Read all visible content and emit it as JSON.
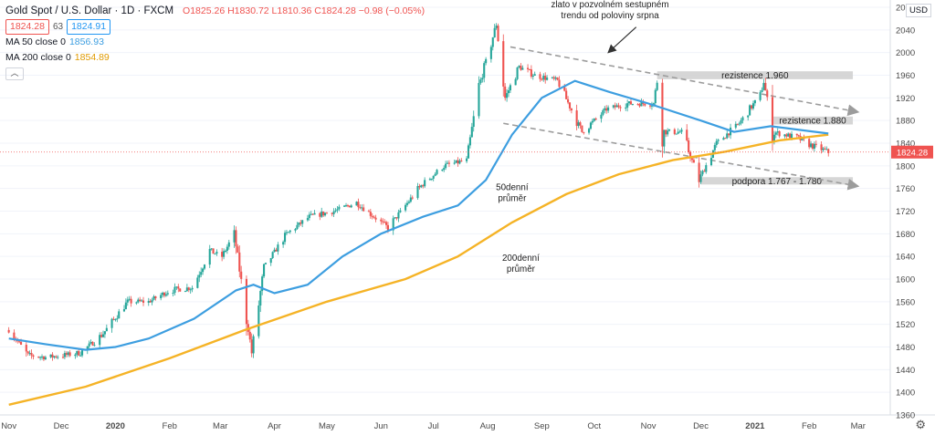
{
  "header": {
    "symbol": "Gold Spot / U.S. Dollar · 1D · FXCM",
    "ohlc": "O1825.26 H1830.72 L1810.36 C1824.28 −0.98 (−0.05%)",
    "bid": "1824.28",
    "spread": "63",
    "ask": "1824.91",
    "ma50_label": "MA 50 close 0",
    "ma50_value": "1856.93",
    "ma200_label": "MA 200 close 0",
    "ma200_value": "1854.89",
    "currency": "USD"
  },
  "colors": {
    "up": "#26a69a",
    "down": "#ef5350",
    "ma50": "#3d9ee0",
    "ma200": "#f5b326",
    "channel": "#9c9c9c",
    "zone": "#cfcfcf"
  },
  "chart_data": {
    "type": "candlestick",
    "ylim": [
      1360,
      2080
    ],
    "y_ticks": [
      1360,
      1400,
      1440,
      1480,
      1520,
      1560,
      1600,
      1640,
      1680,
      1720,
      1760,
      1800,
      1840,
      1880,
      1920,
      1960,
      2000,
      2040,
      2080
    ],
    "x_labels": [
      "Nov",
      "Dec",
      "2020",
      "Feb",
      "Mar",
      "Apr",
      "May",
      "Jun",
      "Jul",
      "Aug",
      "Sep",
      "Oct",
      "Nov",
      "Dec",
      "2021",
      "Feb",
      "Mar"
    ],
    "last_price": "1824.28",
    "price_path": [
      [
        "2019-11-01",
        1510
      ],
      [
        "2019-11-12",
        1465
      ],
      [
        "2019-11-22",
        1462
      ],
      [
        "2019-12-02",
        1465
      ],
      [
        "2019-12-12",
        1470
      ],
      [
        "2019-12-24",
        1500
      ],
      [
        "2020-01-08",
        1560
      ],
      [
        "2020-01-20",
        1560
      ],
      [
        "2020-02-01",
        1580
      ],
      [
        "2020-02-14",
        1585
      ],
      [
        "2020-02-24",
        1650
      ],
      [
        "2020-03-02",
        1640
      ],
      [
        "2020-03-09",
        1680
      ],
      [
        "2020-03-19",
        1470
      ],
      [
        "2020-03-26",
        1620
      ],
      [
        "2020-04-08",
        1680
      ],
      [
        "2020-04-21",
        1710
      ],
      [
        "2020-05-05",
        1720
      ],
      [
        "2020-05-18",
        1735
      ],
      [
        "2020-06-05",
        1690
      ],
      [
        "2020-06-15",
        1730
      ],
      [
        "2020-06-24",
        1765
      ],
      [
        "2020-07-07",
        1800
      ],
      [
        "2020-07-20",
        1810
      ],
      [
        "2020-07-27",
        1940
      ],
      [
        "2020-08-06",
        2050
      ],
      [
        "2020-08-11",
        1920
      ],
      [
        "2020-08-19",
        1975
      ],
      [
        "2020-08-28",
        1960
      ],
      [
        "2020-09-10",
        1950
      ],
      [
        "2020-09-24",
        1860
      ],
      [
        "2020-10-08",
        1900
      ],
      [
        "2020-10-20",
        1910
      ],
      [
        "2020-11-04",
        1910
      ],
      [
        "2020-11-06",
        1950
      ],
      [
        "2020-11-09",
        1860
      ],
      [
        "2020-11-20",
        1860
      ],
      [
        "2020-11-30",
        1775
      ],
      [
        "2020-12-10",
        1840
      ],
      [
        "2020-12-23",
        1875
      ],
      [
        "2021-01-04",
        1925
      ],
      [
        "2021-01-06",
        1950
      ],
      [
        "2021-01-11",
        1860
      ],
      [
        "2021-01-25",
        1850
      ],
      [
        "2021-02-03",
        1835
      ],
      [
        "2021-02-08",
        1830
      ],
      [
        "2021-02-12",
        1824
      ]
    ],
    "series": [
      {
        "name": "MA 50",
        "points": [
          [
            "2019-11-01",
            1495
          ],
          [
            "2019-11-22",
            1485
          ],
          [
            "2019-12-15",
            1475
          ],
          [
            "2020-01-01",
            1480
          ],
          [
            "2020-01-20",
            1495
          ],
          [
            "2020-02-15",
            1530
          ],
          [
            "2020-03-10",
            1580
          ],
          [
            "2020-03-20",
            1590
          ],
          [
            "2020-04-01",
            1575
          ],
          [
            "2020-04-20",
            1590
          ],
          [
            "2020-05-10",
            1640
          ],
          [
            "2020-06-01",
            1680
          ],
          [
            "2020-06-25",
            1710
          ],
          [
            "2020-07-15",
            1730
          ],
          [
            "2020-07-31",
            1775
          ],
          [
            "2020-08-15",
            1855
          ],
          [
            "2020-09-01",
            1920
          ],
          [
            "2020-09-20",
            1950
          ],
          [
            "2020-10-10",
            1930
          ],
          [
            "2020-11-01",
            1910
          ],
          [
            "2020-12-01",
            1880
          ],
          [
            "2020-12-20",
            1860
          ],
          [
            "2021-01-10",
            1870
          ],
          [
            "2021-02-12",
            1857
          ]
        ]
      },
      {
        "name": "MA 200",
        "points": [
          [
            "2019-11-01",
            1378
          ],
          [
            "2019-12-15",
            1410
          ],
          [
            "2020-02-01",
            1460
          ],
          [
            "2020-03-15",
            1510
          ],
          [
            "2020-05-01",
            1560
          ],
          [
            "2020-06-15",
            1600
          ],
          [
            "2020-07-15",
            1640
          ],
          [
            "2020-08-15",
            1700
          ],
          [
            "2020-09-15",
            1750
          ],
          [
            "2020-10-15",
            1785
          ],
          [
            "2020-11-15",
            1810
          ],
          [
            "2020-12-15",
            1825
          ],
          [
            "2021-01-15",
            1845
          ],
          [
            "2021-02-12",
            1855
          ]
        ]
      }
    ],
    "channel": {
      "upper": [
        [
          "2020-08-14",
          2010
        ],
        [
          "2021-03-01",
          1895
        ]
      ],
      "lower": [
        [
          "2020-08-10",
          1875
        ],
        [
          "2021-03-01",
          1764
        ]
      ]
    },
    "zones": [
      {
        "label": "rezistence 1.960",
        "from": "2020-11-06",
        "to": "2021-02-26",
        "low": 1953,
        "high": 1967
      },
      {
        "label": "rezistence 1.880",
        "from": "2021-01-11",
        "to": "2021-02-26",
        "low": 1873,
        "high": 1887
      },
      {
        "label": "podpora 1.767 - 1.780",
        "from": "2020-12-01",
        "to": "2021-02-26",
        "low": 1767,
        "high": 1780
      }
    ],
    "annotations": [
      {
        "text": "zlato v pozvolném sestupném\ntrendu od poloviny srpna",
        "date": "2020-10-10",
        "value": 2080
      },
      {
        "text": "50denní\nprůměr",
        "date": "2020-08-15",
        "value": 1757
      },
      {
        "text": "200denní\nprůměr",
        "date": "2020-08-20",
        "value": 1632
      }
    ]
  }
}
